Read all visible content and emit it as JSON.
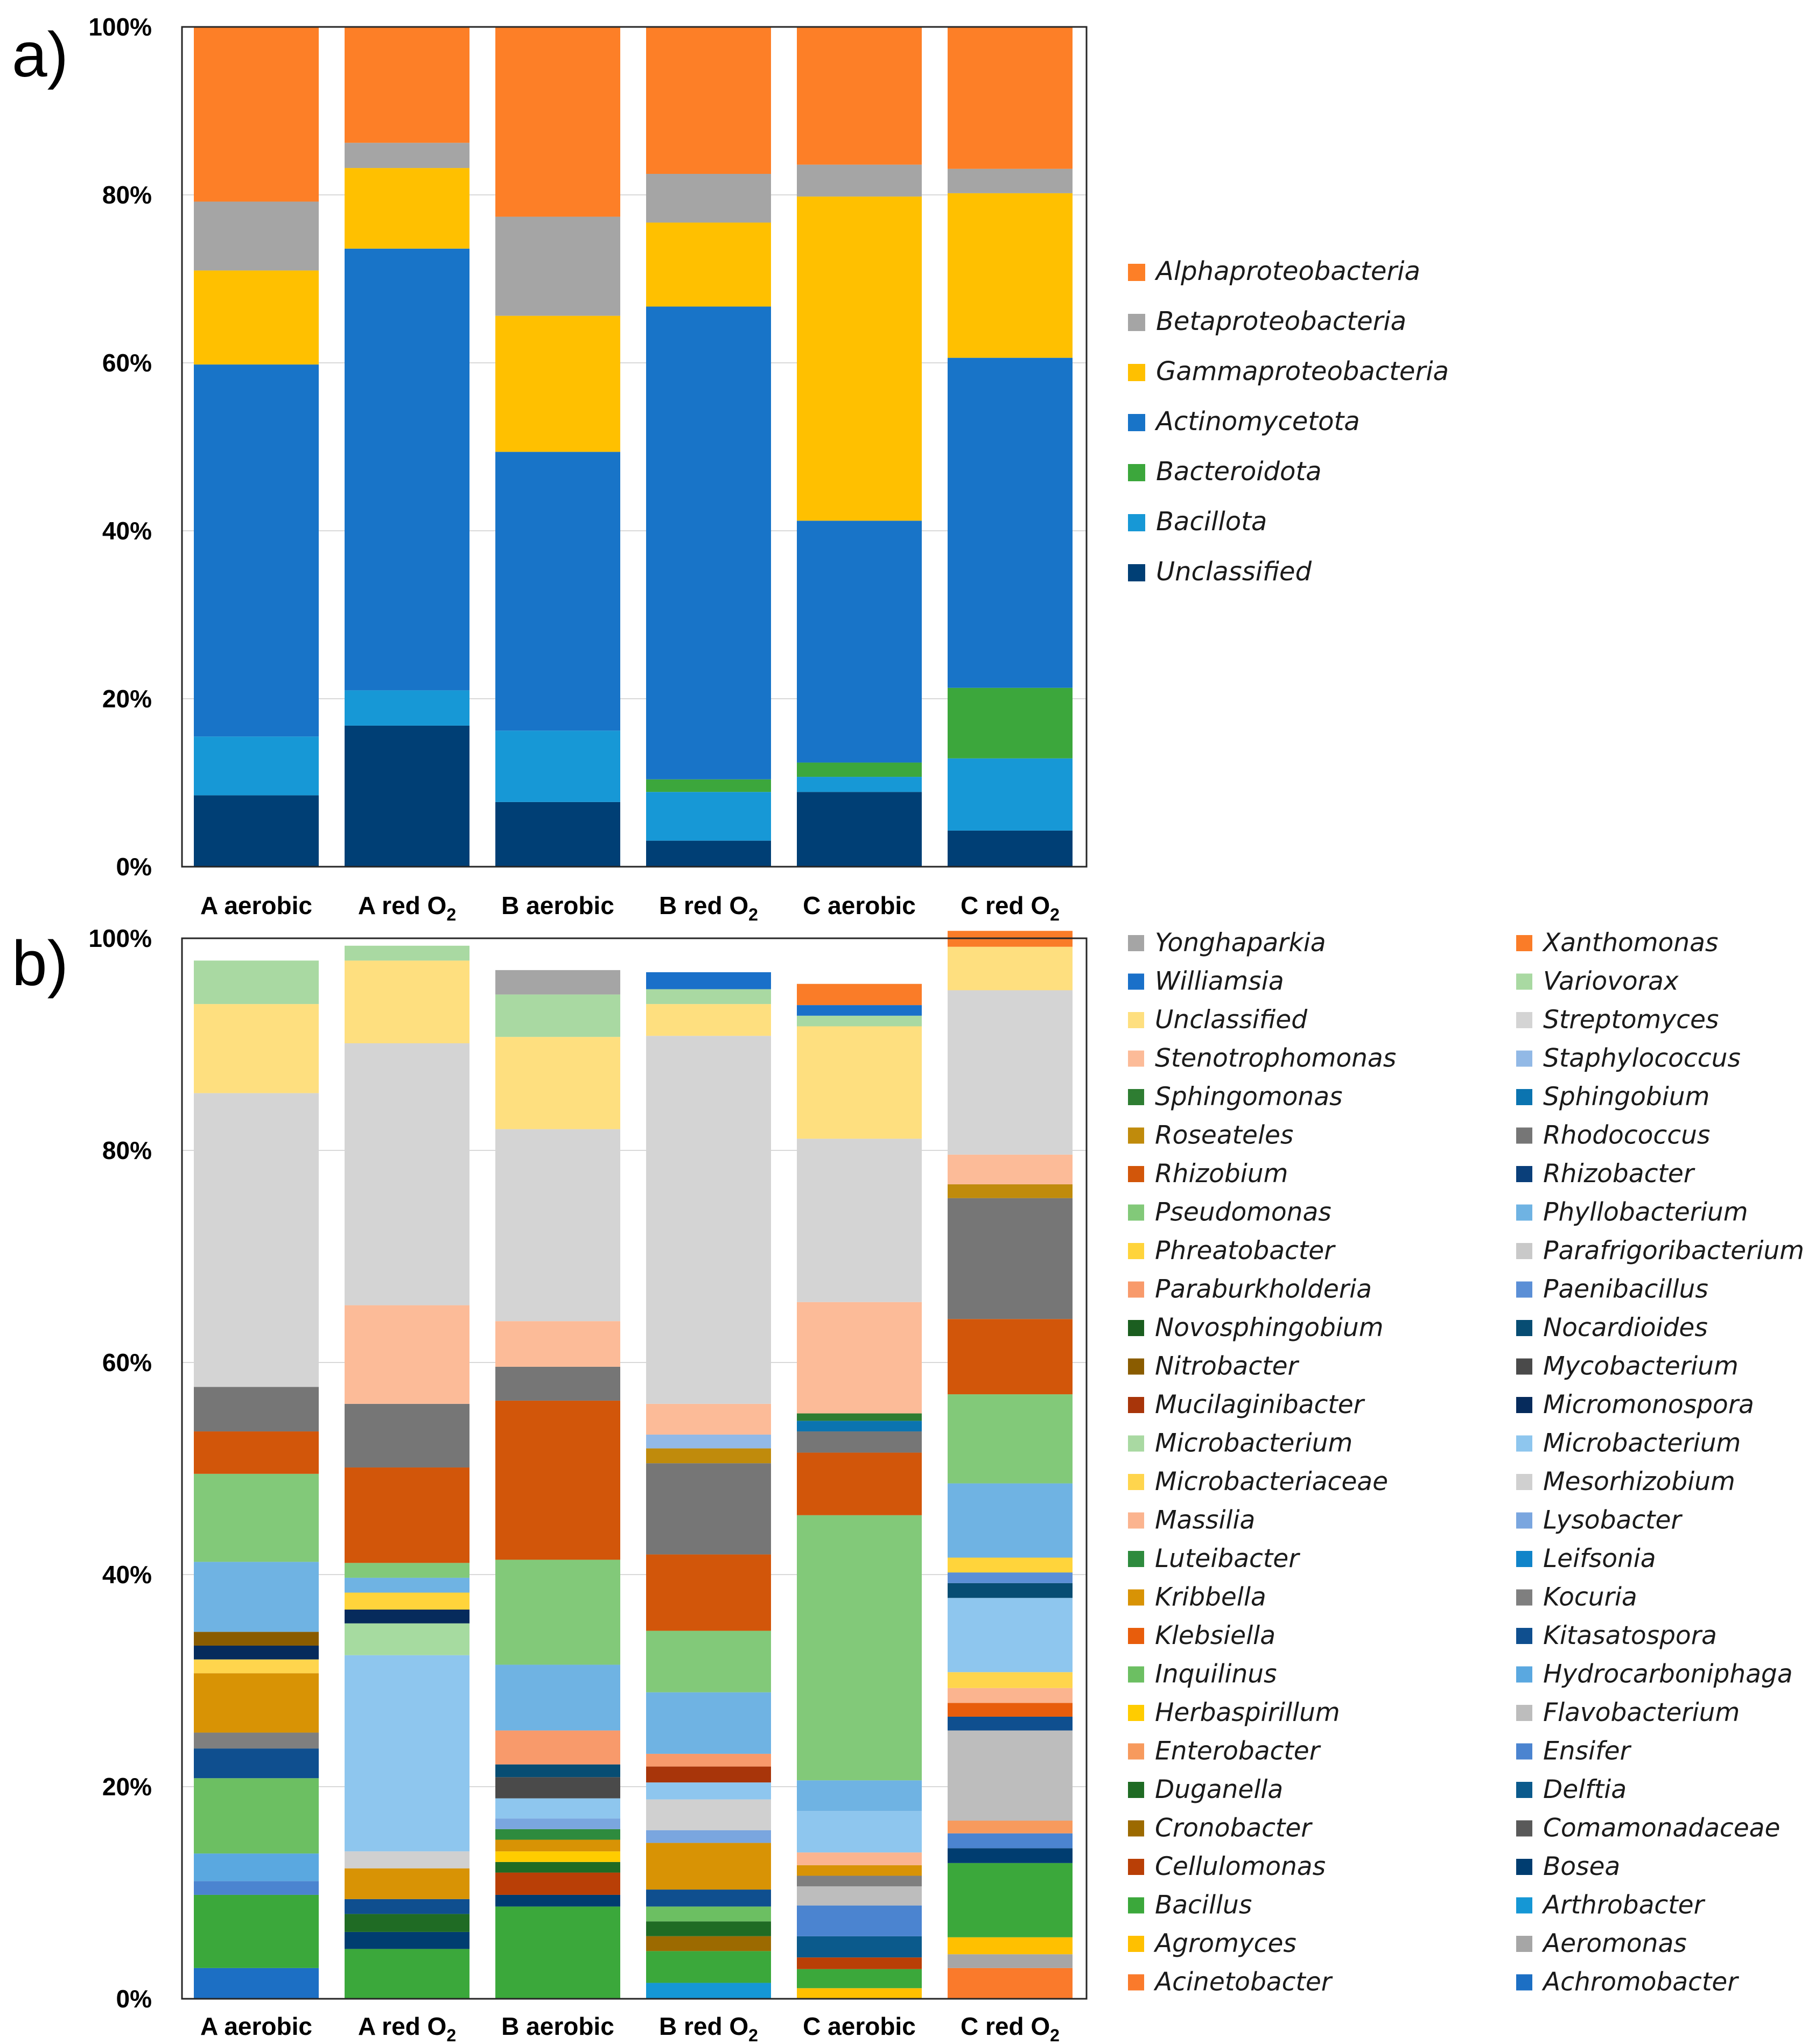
{
  "figure": {
    "panels": [
      {
        "panel_label": "a)",
        "id": "a"
      },
      {
        "panel_label": "b)",
        "id": "b"
      }
    ]
  },
  "chart_data": [
    {
      "id": "a",
      "type": "bar",
      "stacked": true,
      "normalized_percent": true,
      "title": "",
      "xlabel": "",
      "ylabel": "",
      "ylim": [
        0,
        100
      ],
      "yticks": [
        "0%",
        "20%",
        "40%",
        "60%",
        "80%",
        "100%"
      ],
      "legend_position": "right",
      "categories": [
        {
          "main": "A aerobic",
          "sub": ""
        },
        {
          "main": "A red O",
          "sub": "2"
        },
        {
          "main": "B aerobic",
          "sub": ""
        },
        {
          "main": "B red O",
          "sub": "2"
        },
        {
          "main": "C aerobic",
          "sub": ""
        },
        {
          "main": "C red O",
          "sub": "2"
        }
      ],
      "series": [
        {
          "name": "Unclassified",
          "color": "#003f75",
          "values": [
            8.5,
            16.8,
            7.7,
            3.1,
            8.9,
            4.3
          ]
        },
        {
          "name": "Bacillota",
          "color": "#1798d6",
          "values": [
            7.0,
            4.2,
            8.5,
            5.8,
            1.8,
            8.6
          ]
        },
        {
          "name": "Bacteroidota",
          "color": "#3ca73c",
          "values": [
            0,
            0,
            0,
            1.5,
            1.7,
            8.4
          ]
        },
        {
          "name": "Actinomycetota",
          "color": "#1874c8",
          "values": [
            44.3,
            52.6,
            33.2,
            56.3,
            28.8,
            39.3
          ]
        },
        {
          "name": "Gammaproteobacteria",
          "color": "#ffc000",
          "values": [
            11.2,
            9.6,
            16.2,
            10.0,
            38.6,
            19.6
          ]
        },
        {
          "name": "Betaproteobacteria",
          "color": "#a5a5a5",
          "values": [
            8.2,
            3.0,
            11.8,
            5.8,
            3.8,
            2.9
          ]
        },
        {
          "name": "Alphaproteobacteria",
          "color": "#fd7f27",
          "values": [
            20.8,
            13.8,
            22.6,
            17.5,
            16.4,
            16.9
          ]
        }
      ],
      "legend_order": [
        "Alphaproteobacteria",
        "Betaproteobacteria",
        "Gammaproteobacteria",
        "Actinomycetota",
        "Bacteroidota",
        "Bacillota",
        "Unclassified"
      ]
    },
    {
      "id": "b",
      "type": "bar",
      "stacked": true,
      "normalized_percent": true,
      "title": "",
      "xlabel": "",
      "ylabel": "",
      "ylim": [
        0,
        100
      ],
      "yticks": [
        "0%",
        "20%",
        "40%",
        "60%",
        "80%",
        "100%"
      ],
      "legend_position": "right",
      "categories": [
        {
          "main": "A aerobic",
          "sub": ""
        },
        {
          "main": "A red O",
          "sub": "2"
        },
        {
          "main": "B aerobic",
          "sub": ""
        },
        {
          "main": "B red O",
          "sub": "2"
        },
        {
          "main": "C aerobic",
          "sub": ""
        },
        {
          "main": "C red O",
          "sub": "2"
        }
      ],
      "series": [
        {
          "name": "Achromobacter",
          "color": "#1c6fc4",
          "values": [
            2.9,
            0,
            0,
            0,
            0,
            0
          ]
        },
        {
          "name": "Acinetobacter",
          "color": "#fa7a2b",
          "values": [
            0,
            0,
            0,
            0,
            0,
            2.9
          ]
        },
        {
          "name": "Aeromonas",
          "color": "#a6a6a6",
          "values": [
            0,
            0,
            0,
            0,
            0,
            1.3
          ]
        },
        {
          "name": "Agromyces",
          "color": "#ffc000",
          "values": [
            0,
            0,
            0,
            0,
            1.0,
            1.6
          ]
        },
        {
          "name": "Arthrobacter",
          "color": "#1597d5",
          "values": [
            0,
            0,
            0,
            1.5,
            0,
            0
          ]
        },
        {
          "name": "Bacillus",
          "color": "#3ba83b",
          "values": [
            6.9,
            4.7,
            8.7,
            3.0,
            1.8,
            7.0
          ]
        },
        {
          "name": "Bosea",
          "color": "#003d70",
          "values": [
            0,
            1.6,
            1.1,
            0,
            0,
            1.4
          ]
        },
        {
          "name": "Cellulomonas",
          "color": "#b93f06",
          "values": [
            0,
            0,
            2.1,
            0,
            1.1,
            0
          ]
        },
        {
          "name": "Comamonadaceae",
          "color": "#595959",
          "values": [
            0,
            0,
            0,
            0,
            0,
            0
          ]
        },
        {
          "name": "Cronobacter",
          "color": "#9c6a00",
          "values": [
            0,
            0,
            0,
            1.4,
            0,
            0
          ]
        },
        {
          "name": "Delftia",
          "color": "#0b5a8c",
          "values": [
            0,
            0,
            0,
            0,
            2.0,
            0
          ]
        },
        {
          "name": "Duganella",
          "color": "#1f6b24",
          "values": [
            0,
            1.7,
            1.0,
            1.4,
            0,
            0
          ]
        },
        {
          "name": "Ensifer",
          "color": "#4b84d0",
          "values": [
            1.3,
            0,
            0,
            0,
            2.9,
            1.4
          ]
        },
        {
          "name": "Enterobacter",
          "color": "#f79a5d",
          "values": [
            0,
            0,
            0,
            0,
            0,
            1.2
          ]
        },
        {
          "name": "Flavobacterium",
          "color": "#bdbdbd",
          "values": [
            0,
            0,
            0,
            0,
            1.8,
            8.5
          ]
        },
        {
          "name": "Herbaspirillum",
          "color": "#ffcc00",
          "values": [
            0,
            0,
            1.0,
            0,
            0,
            0
          ]
        },
        {
          "name": "Hydrocarboniphaga",
          "color": "#5aa8e0",
          "values": [
            2.6,
            0,
            0,
            0,
            0,
            0
          ]
        },
        {
          "name": "Inquilinus",
          "color": "#6cbf62",
          "values": [
            7.1,
            0,
            0,
            1.4,
            0,
            0
          ]
        },
        {
          "name": "Kitasatospora",
          "color": "#0f4f8f",
          "values": [
            2.8,
            1.4,
            0,
            1.6,
            0,
            1.3
          ]
        },
        {
          "name": "Klebsiella",
          "color": "#e85d0c",
          "values": [
            0,
            0,
            0,
            0,
            0,
            1.3
          ]
        },
        {
          "name": "Kocuria",
          "color": "#7f7f7f",
          "values": [
            1.5,
            0,
            0,
            0,
            1.0,
            0
          ]
        },
        {
          "name": "Kribbella",
          "color": "#d89305",
          "values": [
            5.6,
            2.9,
            1.1,
            4.4,
            1.0,
            0
          ]
        },
        {
          "name": "Leifsonia",
          "color": "#1184c9",
          "values": [
            0,
            0,
            0,
            0,
            0,
            0
          ]
        },
        {
          "name": "Luteibacter",
          "color": "#2e8b3e",
          "values": [
            0,
            0,
            1.0,
            0,
            0,
            0
          ]
        },
        {
          "name": "Lysobacter",
          "color": "#7aa6df",
          "values": [
            0,
            0,
            1.0,
            1.2,
            0,
            0
          ]
        },
        {
          "name": "Massilia",
          "color": "#fbb48f",
          "values": [
            0,
            0,
            0,
            0,
            1.2,
            1.4
          ]
        },
        {
          "name": "Mesorhizobium",
          "color": "#d0d0d0",
          "values": [
            0,
            1.6,
            0,
            2.9,
            0,
            0
          ]
        },
        {
          "name": "Microbacteriaceae",
          "color": "#ffd54d",
          "values": [
            1.3,
            0,
            0,
            0,
            0,
            1.5
          ]
        },
        {
          "name": "Microbacterium",
          "color": "#8ec6ee",
          "values": [
            0,
            18.5,
            1.9,
            1.6,
            3.9,
            7.0
          ]
        },
        {
          "name": "Microbacterium",
          "color": "#a6dba0",
          "values": [
            0,
            3.0,
            0,
            0,
            0,
            0
          ]
        },
        {
          "name": "Micromonospora",
          "color": "#062b5c",
          "values": [
            1.3,
            1.3,
            0,
            0,
            0,
            0
          ]
        },
        {
          "name": "Mucilaginibacter",
          "color": "#a8350a",
          "values": [
            0,
            0,
            0,
            1.5,
            0,
            0
          ]
        },
        {
          "name": "Mycobacterium",
          "color": "#4a4a4a",
          "values": [
            0,
            0,
            2.0,
            0,
            0,
            0
          ]
        },
        {
          "name": "Nitrobacter",
          "color": "#8a5c00",
          "values": [
            1.3,
            0,
            0,
            0,
            0,
            0
          ]
        },
        {
          "name": "Nocardioides",
          "color": "#074d73",
          "values": [
            0,
            0,
            1.2,
            0,
            0,
            1.4
          ]
        },
        {
          "name": "Novosphingobium",
          "color": "#1b5e20",
          "values": [
            0,
            0,
            0,
            0,
            0,
            0
          ]
        },
        {
          "name": "Paenibacillus",
          "color": "#5b8fd6",
          "values": [
            0,
            0,
            0,
            0,
            0,
            1.0
          ]
        },
        {
          "name": "Paraburkholderia",
          "color": "#f89a6b",
          "values": [
            0,
            0,
            3.2,
            1.2,
            0,
            0
          ]
        },
        {
          "name": "Parafrigoribacterium",
          "color": "#c9c9c9",
          "values": [
            0,
            0,
            0,
            0,
            0,
            0
          ]
        },
        {
          "name": "Phreatobacter",
          "color": "#ffd43b",
          "values": [
            0,
            1.6,
            0,
            0,
            0,
            1.4
          ]
        },
        {
          "name": "Phyllobacterium",
          "color": "#6fb3e3",
          "values": [
            6.6,
            1.4,
            6.2,
            5.8,
            2.9,
            7.0
          ]
        },
        {
          "name": "Pseudomonas",
          "color": "#82c979",
          "values": [
            8.3,
            1.4,
            9.9,
            5.8,
            25.0,
            8.4
          ]
        },
        {
          "name": "Rhizobacter",
          "color": "#0a3f7a",
          "values": [
            0,
            0,
            0,
            0,
            0,
            0
          ]
        },
        {
          "name": "Rhizobium",
          "color": "#d2560a",
          "values": [
            4.0,
            9.0,
            15.0,
            7.2,
            5.9,
            7.1
          ]
        },
        {
          "name": "Rhodococcus",
          "color": "#767676",
          "values": [
            4.2,
            6.0,
            3.2,
            8.6,
            2.0,
            11.4
          ]
        },
        {
          "name": "Roseateles",
          "color": "#c08b0c",
          "values": [
            0,
            0,
            0,
            1.4,
            0,
            1.3
          ]
        },
        {
          "name": "Sphingobium",
          "color": "#0b74b0",
          "values": [
            0,
            0,
            0,
            0,
            1.0,
            0
          ]
        },
        {
          "name": "Sphingomonas",
          "color": "#2e7d32",
          "values": [
            0,
            0,
            0,
            0,
            0.7,
            0
          ]
        },
        {
          "name": "Staphylococcus",
          "color": "#92b9e6",
          "values": [
            0,
            0,
            0,
            1.3,
            0,
            0
          ]
        },
        {
          "name": "Stenotrophomonas",
          "color": "#fcbb98",
          "values": [
            0,
            9.3,
            4.3,
            2.9,
            10.5,
            2.8
          ]
        },
        {
          "name": "Streptomyces",
          "color": "#d4d4d4",
          "values": [
            27.7,
            24.7,
            18.1,
            34.7,
            15.4,
            15.5
          ]
        },
        {
          "name": "Unclassified",
          "color": "#fedf7f",
          "values": [
            8.4,
            7.8,
            8.7,
            3.0,
            10.6,
            4.1
          ]
        },
        {
          "name": "Variovorax",
          "color": "#a9d9a2",
          "values": [
            4.1,
            1.4,
            4.0,
            1.4,
            1.0,
            0
          ]
        },
        {
          "name": "Williamsia",
          "color": "#1a70c9",
          "values": [
            0,
            0,
            0,
            1.6,
            1.0,
            0
          ]
        },
        {
          "name": "Xanthomonas",
          "color": "#fa7c28",
          "values": [
            0,
            0,
            0,
            0,
            2.0,
            1.5
          ]
        },
        {
          "name": "Yonghaparkia",
          "color": "#a5a5a5",
          "values": [
            0,
            0,
            2.3,
            0,
            0,
            0
          ]
        }
      ],
      "legend_columns": [
        [
          "Yonghaparkia",
          "Williamsia",
          "Unclassified",
          "Stenotrophomonas",
          "Sphingomonas",
          "Roseateles",
          "Rhizobium",
          "Pseudomonas",
          "Phreatobacter",
          "Paraburkholderia",
          "Novosphingobium",
          "Nitrobacter",
          "Mucilaginibacter",
          "Microbacterium",
          "Microbacteriaceae",
          "Massilia",
          "Luteibacter",
          "Kribbella",
          "Klebsiella",
          "Inquilinus",
          "Herbaspirillum",
          "Enterobacter",
          "Duganella",
          "Cronobacter",
          "Cellulomonas",
          "Bacillus",
          "Agromyces",
          "Acinetobacter"
        ],
        [
          "Xanthomonas",
          "Variovorax",
          "Streptomyces",
          "Staphylococcus",
          "Sphingobium",
          "Rhodococcus",
          "Rhizobacter",
          "Phyllobacterium",
          "Parafrigoribacterium",
          "Paenibacillus",
          "Nocardioides",
          "Mycobacterium",
          "Micromonospora",
          "Microbacterium",
          "Mesorhizobium",
          "Lysobacter",
          "Leifsonia",
          "Kocuria",
          "Kitasatospora",
          "Hydrocarboniphaga",
          "Flavobacterium",
          "Ensifer",
          "Delftia",
          "Comamonadaceae",
          "Bosea",
          "Arthrobacter",
          "Aeromonas",
          "Achromobacter"
        ]
      ],
      "legend_colors": [
        [
          "#a5a5a5",
          "#1a70c9",
          "#fedf7f",
          "#fcbb98",
          "#2e7d32",
          "#c08b0c",
          "#d2560a",
          "#82c979",
          "#ffd43b",
          "#f89a6b",
          "#1b5e20",
          "#8a5c00",
          "#a8350a",
          "#a9d9a2",
          "#ffd54d",
          "#fbb48f",
          "#2e8b3e",
          "#d89305",
          "#e85d0c",
          "#6cbf62",
          "#ffcc00",
          "#f79a5d",
          "#1f6b24",
          "#9c6a00",
          "#b93f06",
          "#3ba83b",
          "#ffc000",
          "#fa7a2b"
        ],
        [
          "#fa7c28",
          "#a9d9a2",
          "#d4d4d4",
          "#92b9e6",
          "#0b74b0",
          "#767676",
          "#0a3f7a",
          "#6fb3e3",
          "#c9c9c9",
          "#5b8fd6",
          "#074d73",
          "#4a4a4a",
          "#062b5c",
          "#8ec6ee",
          "#d0d0d0",
          "#7aa6df",
          "#1184c9",
          "#7f7f7f",
          "#0f4f8f",
          "#5aa8e0",
          "#bdbdbd",
          "#4b84d0",
          "#0b5a8c",
          "#595959",
          "#003d70",
          "#1597d5",
          "#a6a6a6",
          "#1c6fc4"
        ]
      ]
    }
  ]
}
